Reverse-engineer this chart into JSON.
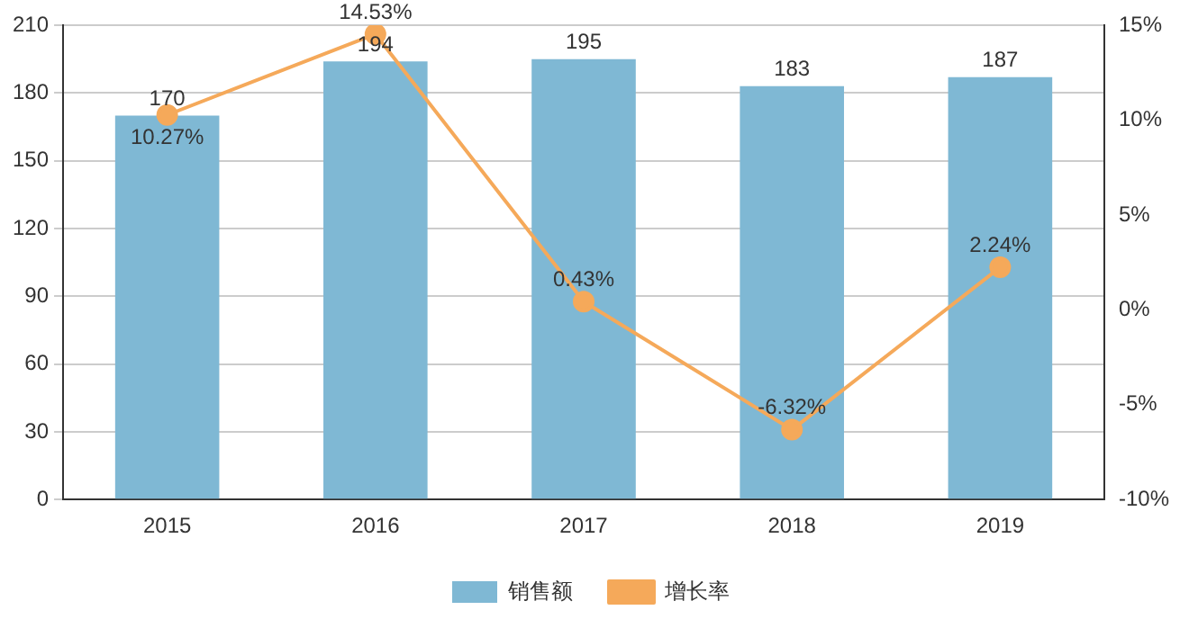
{
  "chart_data": {
    "type": "bar",
    "categories": [
      "2015",
      "2016",
      "2017",
      "2018",
      "2019"
    ],
    "series": [
      {
        "name": "销售额",
        "color": "#7fb8d4",
        "values": [
          170,
          194,
          195,
          183,
          187
        ],
        "value_labels": [
          "170",
          "194",
          "195",
          "183",
          "187"
        ]
      },
      {
        "name": "增长率",
        "type": "line",
        "axis": "y2",
        "color": "#f5a95a",
        "values": [
          10.27,
          14.53,
          0.43,
          -6.32,
          2.24
        ],
        "value_labels": [
          "10.27%",
          "14.53%",
          "0.43%",
          "-6.32%",
          "2.24%"
        ]
      }
    ],
    "ylim": [
      0,
      210
    ],
    "yticks": [
      0,
      30,
      60,
      90,
      120,
      150,
      180,
      210
    ],
    "y2lim": [
      -10,
      15
    ],
    "y2ticks": [
      {
        "value": -10,
        "label": "-10%"
      },
      {
        "value": -5,
        "label": "-5%"
      },
      {
        "value": 0,
        "label": "0%"
      },
      {
        "value": 5,
        "label": "5%"
      },
      {
        "value": 10,
        "label": "10%"
      },
      {
        "value": 15,
        "label": "15%"
      }
    ],
    "grid": "y",
    "legend": "bottom",
    "marker": "circle",
    "line_style": "solid"
  }
}
